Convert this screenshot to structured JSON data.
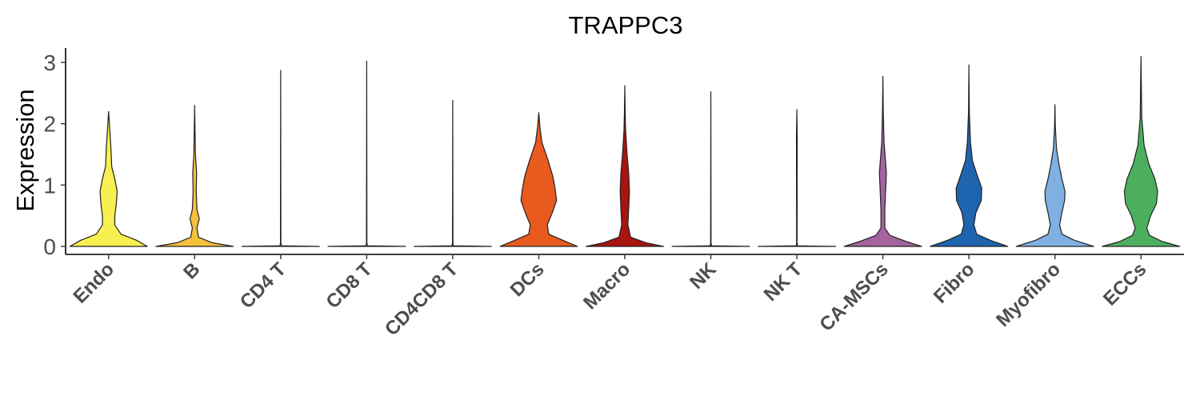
{
  "chart_data": {
    "type": "violin",
    "title": "TRAPPC3",
    "xlabel": "",
    "ylabel": "Expression",
    "ylim": [
      -0.15,
      3.25
    ],
    "yticks": [
      0,
      1,
      2,
      3
    ],
    "grid": false,
    "legend": "none",
    "categories": [
      "Endo",
      "B",
      "CD4 T",
      "CD8 T",
      "CD4CD8 T",
      "DCs",
      "Macro",
      "NK",
      "NK T",
      "CA-MSCs",
      "Fibro",
      "Myofibro",
      "ECCs"
    ],
    "series": [
      {
        "category": "Endo",
        "color": "#f7f050",
        "max": 2.2,
        "profile": [
          [
            0,
            1.0
          ],
          [
            0.1,
            0.72
          ],
          [
            0.2,
            0.32
          ],
          [
            0.35,
            0.16
          ],
          [
            0.5,
            0.16
          ],
          [
            0.7,
            0.2
          ],
          [
            0.9,
            0.22
          ],
          [
            1.1,
            0.16
          ],
          [
            1.3,
            0.08
          ],
          [
            1.6,
            0.06
          ],
          [
            1.9,
            0.03
          ],
          [
            2.2,
            0.0
          ]
        ]
      },
      {
        "category": "B",
        "color": "#f6bf3c",
        "max": 2.3,
        "profile": [
          [
            0,
            1.0
          ],
          [
            0.06,
            0.45
          ],
          [
            0.15,
            0.1
          ],
          [
            0.3,
            0.06
          ],
          [
            0.45,
            0.12
          ],
          [
            0.6,
            0.06
          ],
          [
            0.9,
            0.04
          ],
          [
            1.2,
            0.05
          ],
          [
            1.5,
            0.02
          ],
          [
            1.9,
            0.01
          ],
          [
            2.3,
            0.0
          ]
        ]
      },
      {
        "category": "CD4 T",
        "color": "#f1a23e",
        "max": 2.87,
        "profile": [
          [
            0,
            1.0
          ],
          [
            0.01,
            0.02
          ],
          [
            0.05,
            0.006
          ],
          [
            2.87,
            0.0
          ]
        ]
      },
      {
        "category": "CD8 T",
        "color": "#ef8a2e",
        "max": 3.02,
        "profile": [
          [
            0,
            1.0
          ],
          [
            0.01,
            0.02
          ],
          [
            0.05,
            0.006
          ],
          [
            3.02,
            0.0
          ]
        ]
      },
      {
        "category": "CD4CD8 T",
        "color": "#ec6d27",
        "max": 2.38,
        "profile": [
          [
            0,
            1.0
          ],
          [
            0.01,
            0.02
          ],
          [
            0.05,
            0.006
          ],
          [
            2.38,
            0.0
          ]
        ]
      },
      {
        "category": "DCs",
        "color": "#e85a1e",
        "max": 2.18,
        "profile": [
          [
            0,
            1.0
          ],
          [
            0.1,
            0.62
          ],
          [
            0.2,
            0.26
          ],
          [
            0.35,
            0.22
          ],
          [
            0.55,
            0.35
          ],
          [
            0.75,
            0.46
          ],
          [
            0.95,
            0.42
          ],
          [
            1.15,
            0.36
          ],
          [
            1.4,
            0.24
          ],
          [
            1.7,
            0.08
          ],
          [
            1.95,
            0.03
          ],
          [
            2.18,
            0.0
          ]
        ]
      },
      {
        "category": "Macro",
        "color": "#a8140f",
        "max": 2.62,
        "profile": [
          [
            0,
            1.0
          ],
          [
            0.06,
            0.55
          ],
          [
            0.15,
            0.15
          ],
          [
            0.35,
            0.08
          ],
          [
            0.6,
            0.1
          ],
          [
            0.9,
            0.12
          ],
          [
            1.2,
            0.1
          ],
          [
            1.5,
            0.06
          ],
          [
            1.9,
            0.02
          ],
          [
            2.2,
            0.01
          ],
          [
            2.62,
            0.0
          ]
        ]
      },
      {
        "category": "NK",
        "color": "#8e1a1a",
        "max": 2.52,
        "profile": [
          [
            0,
            1.0
          ],
          [
            0.01,
            0.02
          ],
          [
            0.05,
            0.006
          ],
          [
            2.52,
            0.0
          ]
        ]
      },
      {
        "category": "NK T",
        "color": "#c06aa0",
        "max": 2.23,
        "profile": [
          [
            0,
            1.0
          ],
          [
            0.01,
            0.02
          ],
          [
            0.05,
            0.006
          ],
          [
            1.7,
            0.01
          ],
          [
            1.8,
            0.01
          ],
          [
            2.23,
            0.0
          ]
        ]
      },
      {
        "category": "CA-MSCs",
        "color": "#a364a0",
        "max": 2.77,
        "profile": [
          [
            0,
            1.0
          ],
          [
            0.08,
            0.6
          ],
          [
            0.18,
            0.18
          ],
          [
            0.3,
            0.05
          ],
          [
            0.6,
            0.05
          ],
          [
            0.9,
            0.07
          ],
          [
            1.2,
            0.09
          ],
          [
            1.45,
            0.06
          ],
          [
            1.7,
            0.03
          ],
          [
            2.2,
            0.01
          ],
          [
            2.77,
            0.0
          ]
        ]
      },
      {
        "category": "Fibro",
        "color": "#1e64ae",
        "max": 2.96,
        "profile": [
          [
            0,
            1.0
          ],
          [
            0.1,
            0.55
          ],
          [
            0.2,
            0.2
          ],
          [
            0.35,
            0.13
          ],
          [
            0.55,
            0.18
          ],
          [
            0.75,
            0.32
          ],
          [
            0.95,
            0.33
          ],
          [
            1.15,
            0.22
          ],
          [
            1.4,
            0.09
          ],
          [
            1.7,
            0.04
          ],
          [
            2.2,
            0.01
          ],
          [
            2.96,
            0.0
          ]
        ]
      },
      {
        "category": "Myofibro",
        "color": "#7eb1e2",
        "max": 2.31,
        "profile": [
          [
            0,
            1.0
          ],
          [
            0.1,
            0.5
          ],
          [
            0.2,
            0.18
          ],
          [
            0.35,
            0.12
          ],
          [
            0.55,
            0.18
          ],
          [
            0.75,
            0.25
          ],
          [
            0.9,
            0.26
          ],
          [
            1.1,
            0.18
          ],
          [
            1.35,
            0.1
          ],
          [
            1.6,
            0.04
          ],
          [
            1.95,
            0.01
          ],
          [
            2.31,
            0.0
          ]
        ]
      },
      {
        "category": "ECCs",
        "color": "#4caf5d",
        "max": 3.1,
        "profile": [
          [
            0,
            1.0
          ],
          [
            0.08,
            0.55
          ],
          [
            0.18,
            0.22
          ],
          [
            0.3,
            0.15
          ],
          [
            0.5,
            0.25
          ],
          [
            0.7,
            0.4
          ],
          [
            0.9,
            0.43
          ],
          [
            1.1,
            0.36
          ],
          [
            1.35,
            0.2
          ],
          [
            1.65,
            0.08
          ],
          [
            2.1,
            0.02
          ],
          [
            2.6,
            0.01
          ],
          [
            3.1,
            0.0
          ]
        ]
      }
    ]
  }
}
